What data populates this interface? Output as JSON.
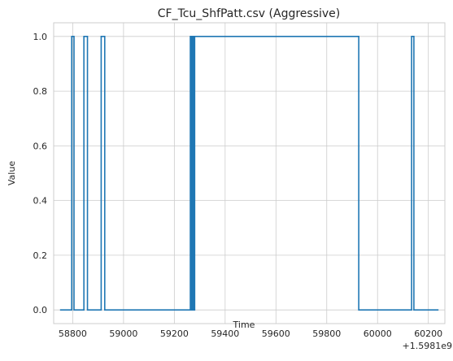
{
  "chart_data": {
    "type": "line",
    "title": "CF_Tcu_ShfPatt.csv (Aggressive)",
    "xlabel": "Time",
    "ylabel": "Value",
    "offset_label": "+1.5981e9",
    "xlim": [
      58725,
      60265
    ],
    "ylim": [
      -0.05,
      1.05
    ],
    "xticks": [
      58800,
      59000,
      59200,
      59400,
      59600,
      59800,
      60000,
      60200
    ],
    "yticks": [
      0.0,
      0.2,
      0.4,
      0.6,
      0.8,
      1.0
    ],
    "xtick_labels": [
      "58800",
      "59000",
      "59200",
      "59400",
      "59600",
      "59800",
      "60000",
      "60200"
    ],
    "ytick_labels": [
      "0.0",
      "0.2",
      "0.4",
      "0.6",
      "0.8",
      "1.0"
    ],
    "grid": true,
    "step": "post",
    "series": [
      {
        "color": "#1f77b4",
        "x": [
          58750,
          58796,
          58805,
          58844,
          58858,
          58912,
          58926,
          59263,
          59268,
          59273,
          59276,
          59280,
          59912,
          59926,
          60134,
          60143,
          60240
        ],
        "y": [
          0,
          1,
          0,
          1,
          0,
          1,
          0,
          1,
          0,
          1,
          0,
          1,
          1,
          0,
          1,
          0,
          0
        ]
      }
    ]
  }
}
